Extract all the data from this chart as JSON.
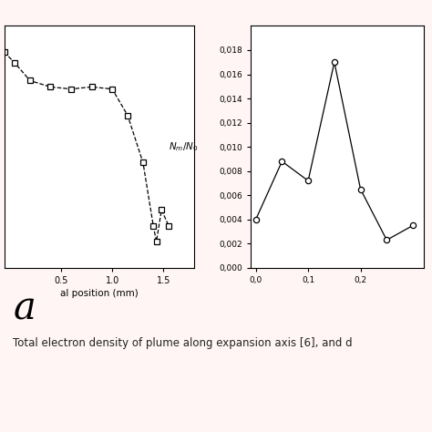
{
  "left_chart": {
    "x": [
      -0.05,
      0.05,
      0.2,
      0.4,
      0.6,
      0.8,
      1.0,
      1.15,
      1.3,
      1.4,
      1.43,
      1.48,
      1.55
    ],
    "y": [
      20.5,
      19.5,
      17.8,
      17.2,
      17.0,
      17.2,
      17.0,
      14.5,
      10.0,
      4.0,
      2.5,
      5.5,
      4.0
    ],
    "xlabel": "al position (mm)",
    "xlim": [
      -0.05,
      1.8
    ],
    "ylim": [
      0,
      23
    ],
    "xticks": [
      0.5,
      1.0,
      1.5
    ],
    "xtick_labels": [
      "0.5",
      "1.0",
      "1.5"
    ]
  },
  "right_chart": {
    "x": [
      0.0,
      0.05,
      0.1,
      0.15,
      0.2,
      0.25,
      0.3
    ],
    "y": [
      0.004,
      0.0088,
      0.0072,
      0.017,
      0.0065,
      0.0023,
      0.0035
    ],
    "xlim": [
      -0.01,
      0.32
    ],
    "ylim": [
      0.0,
      0.02
    ],
    "xticks": [
      0.0,
      0.1,
      0.2
    ],
    "xtick_labels": [
      "0,0",
      "0,1",
      "0,2"
    ],
    "yticks": [
      0.0,
      0.002,
      0.004,
      0.006,
      0.008,
      0.01,
      0.012,
      0.014,
      0.016,
      0.018
    ],
    "ytick_labels": [
      "0,000",
      "0,002",
      "0,004",
      "0,006",
      "0,008",
      "0,010",
      "0,012",
      "0,014",
      "0,016",
      "0,018"
    ]
  },
  "caption_letter": "a",
  "caption_text": "Total electron density of plume along expansion axis [6], and d",
  "fig_bg": "#FFF5F5",
  "plot_bg": "#ffffff",
  "line_color": "#000000",
  "marker_color": "#000000"
}
